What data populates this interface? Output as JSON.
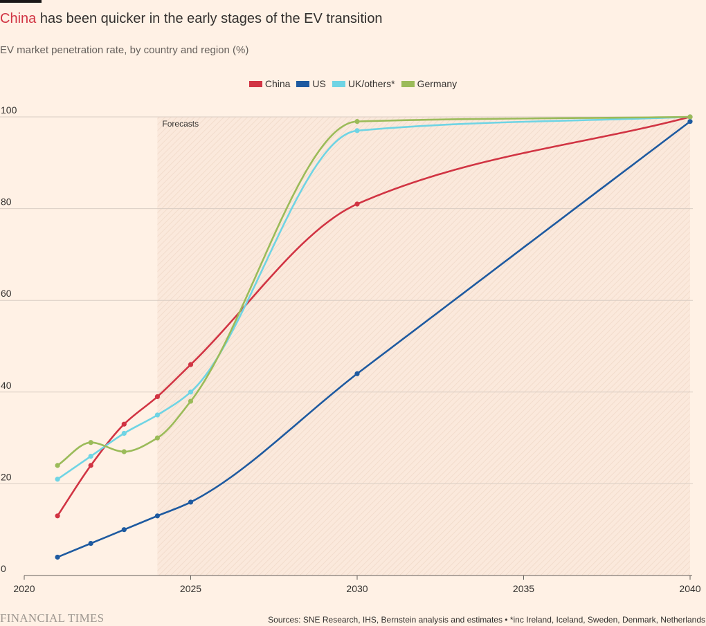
{
  "title": {
    "highlight": "China",
    "rest": " has been quicker in the early stages of the EV transition"
  },
  "subtitle": "EV market penetration rate, by country and region (%)",
  "footer": {
    "logo": "FINANCIAL TIMES",
    "source": "Sources: SNE Research, IHS, Bernstein analysis and estimates • *inc Ireland, Iceland, Sweden, Denmark, Netherlands"
  },
  "chart_data": {
    "type": "line",
    "title": "",
    "xlabel": "",
    "ylabel": "",
    "xlim": [
      2020,
      2040
    ],
    "ylim": [
      0,
      100
    ],
    "x_ticks": [
      2020,
      2025,
      2030,
      2035,
      2040
    ],
    "y_ticks": [
      0,
      20,
      40,
      60,
      80,
      100
    ],
    "grid": "horizontal",
    "legend_position": "top-center",
    "annotation": {
      "label": "Forecasts",
      "from_x": 2024,
      "to_x": 2040
    },
    "series": [
      {
        "name": "China",
        "color": "#d13443",
        "points": [
          [
            2021,
            13
          ],
          [
            2022,
            24
          ],
          [
            2023,
            33
          ],
          [
            2024,
            39
          ],
          [
            2025,
            46
          ],
          [
            2030,
            81
          ],
          [
            2040,
            100
          ]
        ]
      },
      {
        "name": "US",
        "color": "#1e5aa0",
        "points": [
          [
            2021,
            4
          ],
          [
            2022,
            7
          ],
          [
            2023,
            10
          ],
          [
            2024,
            13
          ],
          [
            2025,
            16
          ],
          [
            2030,
            44
          ],
          [
            2040,
            99
          ]
        ]
      },
      {
        "name": "UK/others*",
        "color": "#6fd4e4",
        "points": [
          [
            2021,
            21
          ],
          [
            2022,
            26
          ],
          [
            2023,
            31
          ],
          [
            2024,
            35
          ],
          [
            2025,
            40
          ],
          [
            2030,
            97
          ],
          [
            2040,
            100
          ]
        ]
      },
      {
        "name": "Germany",
        "color": "#9bbb59",
        "points": [
          [
            2021,
            24
          ],
          [
            2022,
            29
          ],
          [
            2023,
            27
          ],
          [
            2024,
            30
          ],
          [
            2025,
            38
          ],
          [
            2030,
            99
          ],
          [
            2040,
            100
          ]
        ]
      }
    ]
  }
}
